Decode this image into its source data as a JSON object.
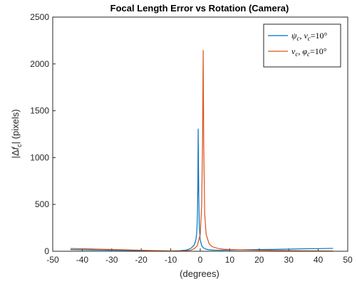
{
  "chart_data": {
    "type": "line",
    "title": "Focal Length Error vs Rotation (Camera)",
    "xlabel": "(degrees)",
    "ylabel": {
      "prefix": "|Δ",
      "var": "f",
      "sub": "c",
      "suffix": "| (pixels)"
    },
    "xlim": [
      -50,
      50
    ],
    "ylim": [
      0,
      2500
    ],
    "xticks": [
      -50,
      -40,
      -30,
      -20,
      -10,
      0,
      10,
      20,
      30,
      40,
      50
    ],
    "yticks": [
      0,
      500,
      1000,
      1500,
      2000,
      2500
    ],
    "grid": false,
    "legend_position": "top-right",
    "series": [
      {
        "name": "ψc, νc=10°",
        "legend": {
          "sym1": "ψ",
          "sub1": "c",
          "sep": ", ",
          "sym2": "ν",
          "sub2": "c",
          "rest": "=10°"
        },
        "color": "#0072BD",
        "x": [
          -44,
          -40,
          -35,
          -30,
          -25,
          -20,
          -15,
          -10,
          -7,
          -5,
          -4,
          -3,
          -2,
          -1.5,
          -1.2,
          -1,
          -0.8,
          -0.7,
          -0.5,
          -0.3,
          0,
          0.5,
          1,
          2,
          3,
          5,
          7,
          10,
          15,
          20,
          25,
          30,
          35,
          40,
          45
        ],
        "y": [
          18,
          16,
          13,
          11,
          9,
          7,
          5,
          3,
          6,
          12,
          20,
          35,
          70,
          120,
          190,
          320,
          700,
          1305,
          600,
          250,
          120,
          60,
          38,
          22,
          16,
          12,
          11,
          13,
          16,
          18,
          20,
          23,
          26,
          28,
          31
        ]
      },
      {
        "name": "νc, φc=10°",
        "legend": {
          "sym1": "ν",
          "sub1": "c",
          "sep": ", ",
          "sym2": "φ",
          "sub2": "c",
          "rest": "=10°"
        },
        "color": "#D95319",
        "x": [
          -44,
          -40,
          -35,
          -30,
          -25,
          -20,
          -15,
          -10,
          -8,
          -6,
          -4,
          -3,
          -2,
          -1,
          0,
          0.5,
          0.8,
          1,
          1.2,
          1.5,
          2,
          3,
          4,
          6,
          8,
          10,
          15,
          20,
          25,
          30,
          35,
          40,
          45
        ],
        "y": [
          30,
          27,
          23,
          19,
          15,
          11,
          7,
          3,
          2,
          3,
          8,
          14,
          28,
          60,
          180,
          500,
          1200,
          2145,
          1100,
          400,
          180,
          80,
          50,
          30,
          22,
          18,
          14,
          11,
          9,
          7,
          5,
          4,
          3
        ]
      }
    ]
  }
}
